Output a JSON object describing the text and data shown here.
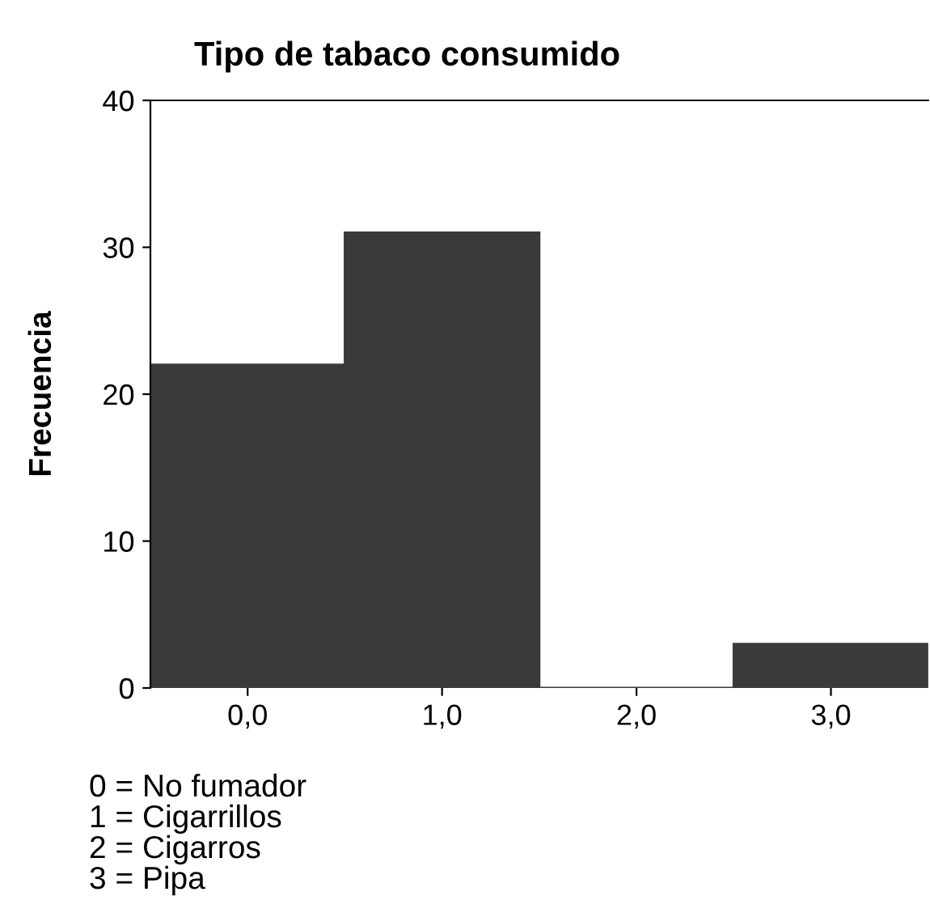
{
  "chart_data": {
    "type": "bar",
    "title": "Tipo de tabaco consumido",
    "ylabel": "Frecuencia",
    "categories": [
      "0,0",
      "1,0",
      "2,0",
      "3,0"
    ],
    "values": [
      22,
      31,
      0,
      3
    ],
    "color": "#3a3a3a",
    "ylim": [
      0,
      40
    ],
    "yticks": [
      0,
      10,
      20,
      30,
      40
    ],
    "grid": false,
    "annotations": [
      "0 = No fumador",
      "1 = Cigarrillos",
      "2 = Cigarros",
      "3 = Pipa"
    ]
  }
}
